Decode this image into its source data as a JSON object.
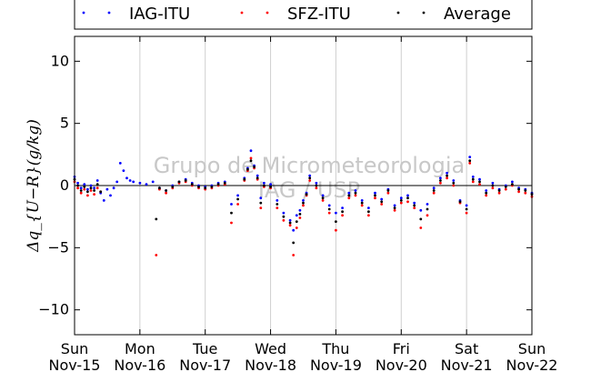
{
  "chart_data": {
    "type": "scatter",
    "title": "",
    "xlabel": "",
    "ylabel": "Δq_{U−R}(g/kg)",
    "ylim": [
      -12,
      12
    ],
    "yticks": [
      -10,
      -5,
      0,
      5,
      10
    ],
    "xlim": [
      0,
      7
    ],
    "xticks": [
      {
        "day": "Sun",
        "date": "Nov-15"
      },
      {
        "day": "Mon",
        "date": "Nov-16"
      },
      {
        "day": "Tue",
        "date": "Nov-17"
      },
      {
        "day": "Wed",
        "date": "Nov-18"
      },
      {
        "day": "Thu",
        "date": "Nov-19"
      },
      {
        "day": "Fri",
        "date": "Nov-20"
      },
      {
        "day": "Sat",
        "date": "Nov-21"
      },
      {
        "day": "Sun",
        "date": "Nov-22"
      }
    ],
    "grid": "vertical",
    "zero_line": true,
    "legend_position": "top, above plot",
    "watermark": [
      "Grupo de Micrometeorologia",
      "IAG / USP"
    ],
    "x_unit": "days since Nov-15 00:00",
    "series": [
      {
        "name": "IAG-ITU",
        "color": "#0000ff",
        "x": [
          0.0,
          0.05,
          0.1,
          0.15,
          0.2,
          0.25,
          0.3,
          0.35,
          0.4,
          0.45,
          0.5,
          0.55,
          0.6,
          0.65,
          0.7,
          0.75,
          0.8,
          0.85,
          0.9,
          1.0,
          1.1,
          1.2,
          1.3,
          1.4,
          1.5,
          1.6,
          1.7,
          1.8,
          1.9,
          2.0,
          2.1,
          2.2,
          2.3,
          2.4,
          2.5,
          2.6,
          2.65,
          2.7,
          2.75,
          2.8,
          2.85,
          2.9,
          3.0,
          3.1,
          3.2,
          3.3,
          3.35,
          3.4,
          3.45,
          3.5,
          3.55,
          3.6,
          3.7,
          3.8,
          3.9,
          4.0,
          4.1,
          4.2,
          4.3,
          4.4,
          4.5,
          4.6,
          4.7,
          4.8,
          4.9,
          5.0,
          5.1,
          5.2,
          5.3,
          5.4,
          5.5,
          5.6,
          5.7,
          5.8,
          5.9,
          6.0,
          6.05,
          6.1,
          6.2,
          6.3,
          6.4,
          6.5,
          6.6,
          6.7,
          6.8,
          6.9,
          7.0
        ],
        "y": [
          0.7,
          0.2,
          -0.2,
          0.1,
          -0.3,
          0.0,
          -0.2,
          0.4,
          -0.6,
          -1.2,
          -0.3,
          -0.8,
          -0.2,
          0.3,
          1.8,
          1.2,
          0.6,
          0.4,
          0.3,
          0.2,
          0.1,
          0.3,
          -0.2,
          -0.4,
          0.0,
          0.3,
          0.5,
          0.2,
          0.0,
          -0.1,
          0.0,
          0.2,
          0.3,
          -1.5,
          -0.8,
          0.6,
          1.4,
          2.8,
          1.6,
          0.8,
          -1.0,
          0.2,
          0.1,
          -1.2,
          -2.2,
          -2.8,
          -3.6,
          -2.4,
          -2.0,
          -1.2,
          -0.6,
          0.8,
          0.2,
          -0.8,
          -1.6,
          -2.2,
          -1.8,
          -0.6,
          -0.4,
          -1.2,
          -1.8,
          -0.6,
          -1.1,
          -0.3,
          -1.6,
          -1.0,
          -0.8,
          -1.4,
          -2.0,
          -1.5,
          -0.2,
          0.6,
          1.0,
          0.4,
          -1.2,
          -1.6,
          2.3,
          0.7,
          0.5,
          -0.4,
          0.2,
          -0.3,
          0.0,
          0.3,
          -0.2,
          -0.3,
          -0.6
        ]
      },
      {
        "name": "SFZ-ITU",
        "color": "#ff0000",
        "x": [
          0.0,
          0.05,
          0.1,
          0.15,
          0.2,
          0.25,
          0.3,
          0.35,
          0.4,
          1.25,
          1.3,
          1.4,
          1.5,
          1.6,
          1.7,
          1.8,
          1.9,
          2.0,
          2.1,
          2.2,
          2.3,
          2.4,
          2.5,
          2.6,
          2.65,
          2.7,
          2.75,
          2.8,
          2.85,
          2.9,
          3.0,
          3.1,
          3.2,
          3.3,
          3.35,
          3.4,
          3.45,
          3.5,
          3.55,
          3.6,
          3.7,
          3.8,
          3.9,
          4.0,
          4.1,
          4.2,
          4.3,
          4.4,
          4.5,
          4.6,
          4.7,
          4.8,
          4.9,
          5.0,
          5.1,
          5.2,
          5.3,
          5.4,
          5.5,
          5.6,
          5.7,
          5.8,
          5.9,
          6.0,
          6.05,
          6.1,
          6.2,
          6.3,
          6.4,
          6.5,
          6.6,
          6.7,
          6.8,
          6.9,
          7.0
        ],
        "y": [
          0.3,
          -0.2,
          -0.6,
          -0.3,
          -0.8,
          -0.4,
          -0.7,
          -0.2,
          -0.5,
          -5.6,
          -0.3,
          -0.6,
          -0.2,
          0.2,
          0.3,
          0.0,
          -0.2,
          -0.3,
          -0.2,
          0.0,
          0.1,
          -3.0,
          -1.5,
          0.4,
          1.2,
          2.2,
          1.4,
          0.5,
          -1.8,
          -0.1,
          -0.2,
          -1.8,
          -2.8,
          -3.2,
          -5.6,
          -3.4,
          -2.6,
          -1.6,
          -0.8,
          0.4,
          -0.2,
          -1.2,
          -2.2,
          -3.6,
          -2.4,
          -1.0,
          -0.8,
          -1.6,
          -2.4,
          -1.0,
          -1.5,
          -0.6,
          -2.0,
          -1.4,
          -1.3,
          -1.8,
          -3.4,
          -2.4,
          -0.6,
          0.2,
          0.6,
          0.0,
          -1.4,
          -2.2,
          1.8,
          0.3,
          0.1,
          -0.8,
          -0.2,
          -0.6,
          -0.3,
          0.0,
          -0.5,
          -0.6,
          -0.9
        ]
      },
      {
        "name": "Average",
        "color": "#000000",
        "x": [
          0.0,
          0.05,
          0.1,
          0.15,
          0.2,
          0.25,
          0.3,
          0.35,
          0.4,
          1.25,
          1.3,
          1.4,
          1.5,
          1.6,
          1.7,
          1.8,
          1.9,
          2.0,
          2.1,
          2.2,
          2.3,
          2.4,
          2.5,
          2.6,
          2.65,
          2.7,
          2.75,
          2.8,
          2.85,
          2.9,
          3.0,
          3.1,
          3.2,
          3.3,
          3.35,
          3.4,
          3.45,
          3.5,
          3.55,
          3.6,
          3.7,
          3.8,
          3.9,
          4.0,
          4.1,
          4.2,
          4.3,
          4.4,
          4.5,
          4.6,
          4.7,
          4.8,
          4.9,
          5.0,
          5.1,
          5.2,
          5.3,
          5.4,
          5.5,
          5.6,
          5.7,
          5.8,
          5.9,
          6.0,
          6.05,
          6.1,
          6.2,
          6.3,
          6.4,
          6.5,
          6.6,
          6.7,
          6.8,
          6.9,
          7.0
        ],
        "y": [
          0.5,
          0.0,
          -0.4,
          -0.1,
          -0.5,
          -0.2,
          -0.4,
          0.1,
          -0.5,
          -2.7,
          -0.2,
          -0.4,
          -0.1,
          0.3,
          0.4,
          0.1,
          -0.1,
          -0.2,
          -0.1,
          0.1,
          0.2,
          -2.2,
          -1.1,
          0.5,
          1.3,
          2.0,
          1.5,
          0.6,
          -1.4,
          0.0,
          -0.1,
          -1.5,
          -2.5,
          -3.0,
          -4.6,
          -2.9,
          -2.3,
          -1.4,
          -0.7,
          0.6,
          0.0,
          -1.0,
          -1.9,
          -2.9,
          -2.1,
          -0.8,
          -0.6,
          -1.4,
          -2.1,
          -0.8,
          -1.3,
          -0.4,
          -1.8,
          -1.2,
          -1.0,
          -1.6,
          -2.7,
          -1.9,
          -0.4,
          0.4,
          0.8,
          0.2,
          -1.3,
          -1.9,
          2.0,
          0.5,
          0.3,
          -0.6,
          0.0,
          -0.4,
          -0.1,
          0.1,
          -0.3,
          -0.4,
          -0.7
        ]
      }
    ]
  }
}
